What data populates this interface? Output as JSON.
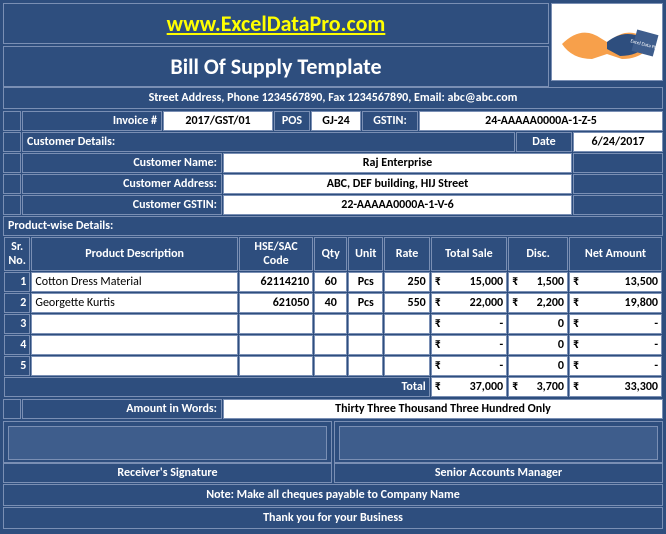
{
  "colors": {
    "primary": "#2e4e7e",
    "accent": "#ffff00",
    "white": "#ffffff",
    "border": "#7a8fb4"
  },
  "header": {
    "website": "www.ExcelDataPro.com",
    "title": "Bill Of Supply Template",
    "address": "Street Address, Phone 1234567890, Fax 1234567890, Email: abc@abc.com"
  },
  "invoice": {
    "number_label": "Invoice #",
    "number": "2017/GST/01",
    "pos_label": "POS",
    "pos": "GJ-24",
    "gstin_label": "GSTIN:",
    "gstin": "24-AAAAA0000A-1-Z-5",
    "date_label": "Date",
    "date": "6/24/2017"
  },
  "customer": {
    "section_label": "Customer Details:",
    "name_label": "Customer Name:",
    "name": "Raj Enterprise",
    "address_label": "Customer Address:",
    "address": "ABC, DEF building, HIJ Street",
    "gstin_label": "Customer GSTIN:",
    "gstin": "22-AAAAA0000A-1-V-6"
  },
  "products": {
    "section_label": "Product-wise Details:",
    "headers": {
      "sr": "Sr.\nNo.",
      "desc": "Product Description",
      "code": "HSE/SAC Code",
      "qty": "Qty",
      "unit": "Unit",
      "rate": "Rate",
      "total": "Total Sale",
      "disc": "Disc.",
      "net": "Net Amount"
    },
    "currency": "₹",
    "rows": [
      {
        "sr": "1",
        "desc": "Cotton Dress Material",
        "code": "62114210",
        "qty": "60",
        "unit": "Pcs",
        "rate": "250",
        "total": "15,000",
        "disc": "1,500",
        "net": "13,500"
      },
      {
        "sr": "2",
        "desc": "Georgette Kurtis",
        "code": "621050",
        "qty": "40",
        "unit": "Pcs",
        "rate": "550",
        "total": "22,000",
        "disc": "2,200",
        "net": "19,800"
      },
      {
        "sr": "3",
        "desc": "",
        "code": "",
        "qty": "",
        "unit": "",
        "rate": "",
        "total": "-",
        "disc": "0",
        "net": "-"
      },
      {
        "sr": "4",
        "desc": "",
        "code": "",
        "qty": "",
        "unit": "",
        "rate": "",
        "total": "-",
        "disc": "0",
        "net": "-"
      },
      {
        "sr": "5",
        "desc": "",
        "code": "",
        "qty": "",
        "unit": "",
        "rate": "",
        "total": "-",
        "disc": "0",
        "net": "-"
      }
    ],
    "totals": {
      "label": "Total",
      "total": "37,000",
      "disc": "3,700",
      "net": "33,300"
    }
  },
  "words": {
    "label": "Amount in Words:",
    "value": "Thirty Three Thousand Three Hundred Only"
  },
  "signatures": {
    "receiver": "Receiver's Signature",
    "manager": "Senior Accounts Manager"
  },
  "footer": {
    "note": "Note: Make all cheques payable to Company Name",
    "thanks": "Thank you for your Business"
  }
}
